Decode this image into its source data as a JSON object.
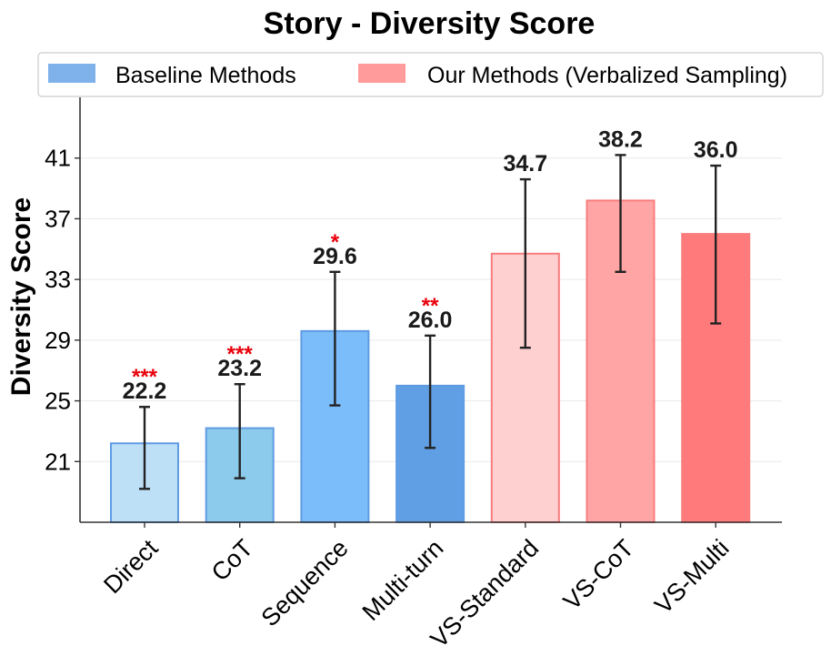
{
  "chart_data": {
    "type": "bar",
    "title": "Story - Diversity Score",
    "xlabel": "",
    "ylabel": "Diversity Score",
    "ylim": [
      17,
      45
    ],
    "yticks": [
      21,
      25,
      29,
      33,
      37,
      41
    ],
    "grid": true,
    "legend_position": "top",
    "legend": [
      {
        "label": "Baseline Methods",
        "color": "#7fb2ea"
      },
      {
        "label": "Our Methods (Verbalized Sampling)",
        "color": "#ff9b9b"
      }
    ],
    "categories": [
      "Direct",
      "CoT",
      "Sequence",
      "Multi-turn",
      "VS-Standard",
      "VS-CoT",
      "VS-Multi"
    ],
    "values": [
      22.2,
      23.2,
      29.6,
      26.0,
      34.7,
      38.2,
      36.0
    ],
    "error_low": [
      19.2,
      19.9,
      24.7,
      21.9,
      28.5,
      33.5,
      30.1
    ],
    "error_high": [
      24.6,
      26.1,
      33.5,
      29.3,
      39.6,
      41.2,
      40.5
    ],
    "value_labels": [
      "22.2",
      "23.2",
      "29.6",
      "26.0",
      "34.7",
      "38.2",
      "36.0"
    ],
    "significance": [
      "***",
      "***",
      "*",
      "**",
      "",
      "",
      ""
    ],
    "fill_colors": [
      "#bde0f7",
      "#8ccbec",
      "#7bbcfb",
      "#619fe4",
      "#ffd0d0",
      "#ffa5a5",
      "#ff7b7b"
    ],
    "edge_colors": [
      "#5f9be3",
      "#5f9be3",
      "#5f9be3",
      "#5f9be3",
      "#f87d7d",
      "#f87d7d",
      "#f87d7d"
    ]
  }
}
